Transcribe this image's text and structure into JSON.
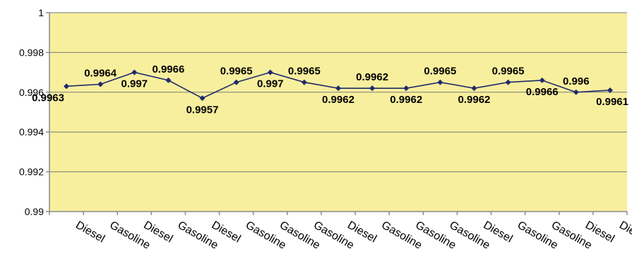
{
  "chart_data": {
    "type": "line",
    "title": "",
    "xlabel": "",
    "ylabel": "",
    "categories": [
      "Diesel",
      "Gasoline",
      "Diesel",
      "Gasoline",
      "Diesel",
      "Gasoline",
      "Gasoline",
      "Gasoline",
      "Diesel",
      "Gasoline",
      "Gasoline",
      "Gasoline",
      "Diesel",
      "Gasoline",
      "Gasoline",
      "Diesel",
      "Diesel"
    ],
    "values": [
      0.9963,
      0.9964,
      0.997,
      0.9966,
      0.9957,
      0.9965,
      0.997,
      0.9965,
      0.9962,
      0.9962,
      0.9962,
      0.9965,
      0.9962,
      0.9965,
      0.9966,
      0.996,
      0.9961
    ],
    "data_labels": [
      "0.9963",
      "0.9964",
      "0.997",
      "0.9966",
      "0.9957",
      "0.9965",
      "0.997",
      "0.9965",
      "0.9962",
      "0.9962",
      "0.9962",
      "0.9965",
      "0.9962",
      "0.9965",
      "0.9966",
      "0.996",
      "0.9961"
    ],
    "ylim": [
      0.99,
      1
    ],
    "yticks": [
      0.99,
      0.992,
      0.994,
      0.996,
      0.998,
      1
    ],
    "ytick_labels": [
      "0.99",
      "0.992",
      "0.994",
      "0.996",
      "0.998",
      "1"
    ],
    "grid": true,
    "legend": "none",
    "colors": {
      "plot_background": "#f8ef9e",
      "line": "#1f2a6b",
      "marker": "#1f2a6b",
      "gridline": "#7a7a7a",
      "axis": "#8a8a8a"
    }
  }
}
